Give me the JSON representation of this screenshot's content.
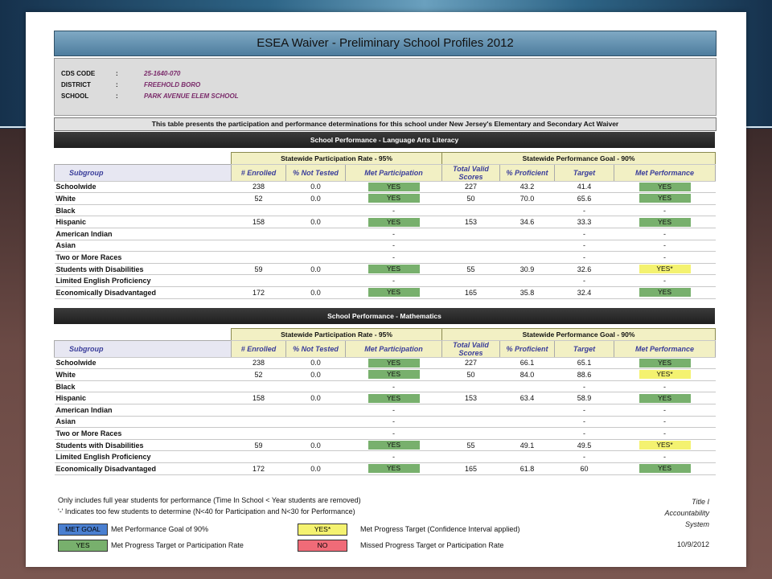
{
  "document": {
    "title": "ESEA Waiver  -  Preliminary School Profiles 2012"
  },
  "info": [
    {
      "label": "CDS CODE",
      "colon": ":",
      "value": "25-1640-070"
    },
    {
      "label": "DISTRICT",
      "colon": ":",
      "value": "FREEHOLD BORO"
    },
    {
      "label": "SCHOOL",
      "colon": ":",
      "value": "PARK AVENUE ELEM SCHOOL"
    }
  ],
  "intro": "This table presents the participation and performance determinations for this school under New Jersey's Elementary and Secondary Act Waiver",
  "group_headers": {
    "participation": "Statewide Participation Rate - 95%",
    "performance": "Statewide Performance Goal - 90%"
  },
  "col_headers": {
    "subgroup": "Subgroup",
    "enrolled": "# Enrolled",
    "not_tested": "% Not Tested",
    "met_participation": "Met Participation",
    "total_valid": "Total Valid Scores",
    "pct_proficient": "% Proficient",
    "target": "Target",
    "met_performance": "Met Performance"
  },
  "colors": {
    "yes": "#78b06d",
    "yes_star": "#f4f270",
    "met_goal": "#4a7fd0",
    "no": "#f06b78"
  },
  "sections": [
    {
      "title": "School Performance - Language Arts Literacy",
      "rows": [
        {
          "name": "Schoolwide",
          "enrolled": "238",
          "not_tested": "0.0",
          "met_part": "YES",
          "valid": "227",
          "proficient": "43.2",
          "target": "41.4",
          "met_perf": "YES"
        },
        {
          "name": "White",
          "enrolled": "52",
          "not_tested": "0.0",
          "met_part": "YES",
          "valid": "50",
          "proficient": "70.0",
          "target": "65.6",
          "met_perf": "YES"
        },
        {
          "name": "Black",
          "enrolled": "",
          "not_tested": "",
          "met_part": "-",
          "valid": "",
          "proficient": "",
          "target": "-",
          "met_perf": "-"
        },
        {
          "name": "Hispanic",
          "enrolled": "158",
          "not_tested": "0.0",
          "met_part": "YES",
          "valid": "153",
          "proficient": "34.6",
          "target": "33.3",
          "met_perf": "YES"
        },
        {
          "name": "American Indian",
          "enrolled": "",
          "not_tested": "",
          "met_part": "-",
          "valid": "",
          "proficient": "",
          "target": "-",
          "met_perf": "-"
        },
        {
          "name": "Asian",
          "enrolled": "",
          "not_tested": "",
          "met_part": "-",
          "valid": "",
          "proficient": "",
          "target": "-",
          "met_perf": "-"
        },
        {
          "name": "Two or More Races",
          "enrolled": "",
          "not_tested": "",
          "met_part": "-",
          "valid": "",
          "proficient": "",
          "target": "-",
          "met_perf": "-"
        },
        {
          "name": "Students with Disabilities",
          "enrolled": "59",
          "not_tested": "0.0",
          "met_part": "YES",
          "valid": "55",
          "proficient": "30.9",
          "target": "32.6",
          "met_perf": "YES*"
        },
        {
          "name": "Limited English Proficiency",
          "enrolled": "",
          "not_tested": "",
          "met_part": "-",
          "valid": "",
          "proficient": "",
          "target": "-",
          "met_perf": "-"
        },
        {
          "name": "Economically Disadvantaged",
          "enrolled": "172",
          "not_tested": "0.0",
          "met_part": "YES",
          "valid": "165",
          "proficient": "35.8",
          "target": "32.4",
          "met_perf": "YES"
        }
      ]
    },
    {
      "title": "School Performance - Mathematics",
      "rows": [
        {
          "name": "Schoolwide",
          "enrolled": "238",
          "not_tested": "0.0",
          "met_part": "YES",
          "valid": "227",
          "proficient": "66.1",
          "target": "65.1",
          "met_perf": "YES"
        },
        {
          "name": "White",
          "enrolled": "52",
          "not_tested": "0.0",
          "met_part": "YES",
          "valid": "50",
          "proficient": "84.0",
          "target": "88.6",
          "met_perf": "YES*"
        },
        {
          "name": "Black",
          "enrolled": "",
          "not_tested": "",
          "met_part": "-",
          "valid": "",
          "proficient": "",
          "target": "-",
          "met_perf": "-"
        },
        {
          "name": "Hispanic",
          "enrolled": "158",
          "not_tested": "0.0",
          "met_part": "YES",
          "valid": "153",
          "proficient": "63.4",
          "target": "58.9",
          "met_perf": "YES"
        },
        {
          "name": "American Indian",
          "enrolled": "",
          "not_tested": "",
          "met_part": "-",
          "valid": "",
          "proficient": "",
          "target": "-",
          "met_perf": "-"
        },
        {
          "name": "Asian",
          "enrolled": "",
          "not_tested": "",
          "met_part": "-",
          "valid": "",
          "proficient": "",
          "target": "-",
          "met_perf": "-"
        },
        {
          "name": "Two or More Races",
          "enrolled": "",
          "not_tested": "",
          "met_part": "-",
          "valid": "",
          "proficient": "",
          "target": "-",
          "met_perf": "-"
        },
        {
          "name": "Students with Disabilities",
          "enrolled": "59",
          "not_tested": "0.0",
          "met_part": "YES",
          "valid": "55",
          "proficient": "49.1",
          "target": "49.5",
          "met_perf": "YES*"
        },
        {
          "name": "Limited English Proficiency",
          "enrolled": "",
          "not_tested": "",
          "met_part": "-",
          "valid": "",
          "proficient": "",
          "target": "-",
          "met_perf": "-"
        },
        {
          "name": "Economically Disadvantaged",
          "enrolled": "172",
          "not_tested": "0.0",
          "met_part": "YES",
          "valid": "165",
          "proficient": "61.8",
          "target": "60",
          "met_perf": "YES"
        }
      ]
    }
  ],
  "footer": {
    "note1": "Only includes full year students for performance (Time In School < Year students are removed)",
    "note2": "'-' Indicates too few students to determine (N<40 for Participation and N<30 for Performance)",
    "right_line1": "Title I",
    "right_line2": "Accountability",
    "right_line3": "System",
    "date": "10/9/2012",
    "legend": [
      {
        "swatch": "MET GOAL",
        "text": "Met Performance Goal of 90%"
      },
      {
        "swatch": "YES",
        "text": "Met Progress Target or Participation Rate"
      },
      {
        "swatch": "YES*",
        "text": "Met Progress Target (Confidence Interval applied)"
      },
      {
        "swatch": "NO",
        "text": "Missed Progress Target or Participation Rate"
      }
    ]
  }
}
